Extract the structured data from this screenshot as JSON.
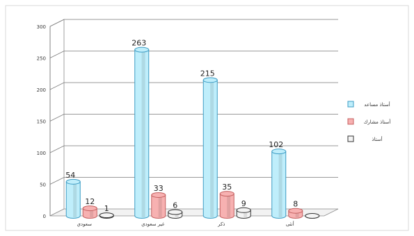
{
  "chart_data": {
    "type": "bar",
    "categories": [
      "سعودي",
      "غير سعودي",
      "ذكر",
      "أنثى"
    ],
    "series": [
      {
        "name": "أستاذ مساعد",
        "values": [
          54,
          263,
          215,
          102
        ],
        "color": "#bfeefb",
        "edge": "#3d9cc4",
        "labels": [
          "54",
          "263",
          "215",
          "102"
        ]
      },
      {
        "name": "أستاذ مشارك",
        "values": [
          12,
          33,
          35,
          8
        ],
        "color": "#f7b1b1",
        "edge": "#c46060",
        "labels": [
          "12",
          "33",
          "35",
          "8"
        ]
      },
      {
        "name": "أستاذ",
        "values": [
          1,
          6,
          9,
          0
        ],
        "color": "#f4f4f4",
        "edge": "#333333",
        "labels": [
          "1",
          "6",
          "9",
          ""
        ]
      }
    ],
    "yticks": [
      "0",
      "50",
      "100",
      "150",
      "200",
      "250",
      "300"
    ],
    "ylim": [
      0,
      300
    ],
    "grid": true,
    "legend_position": "right"
  }
}
